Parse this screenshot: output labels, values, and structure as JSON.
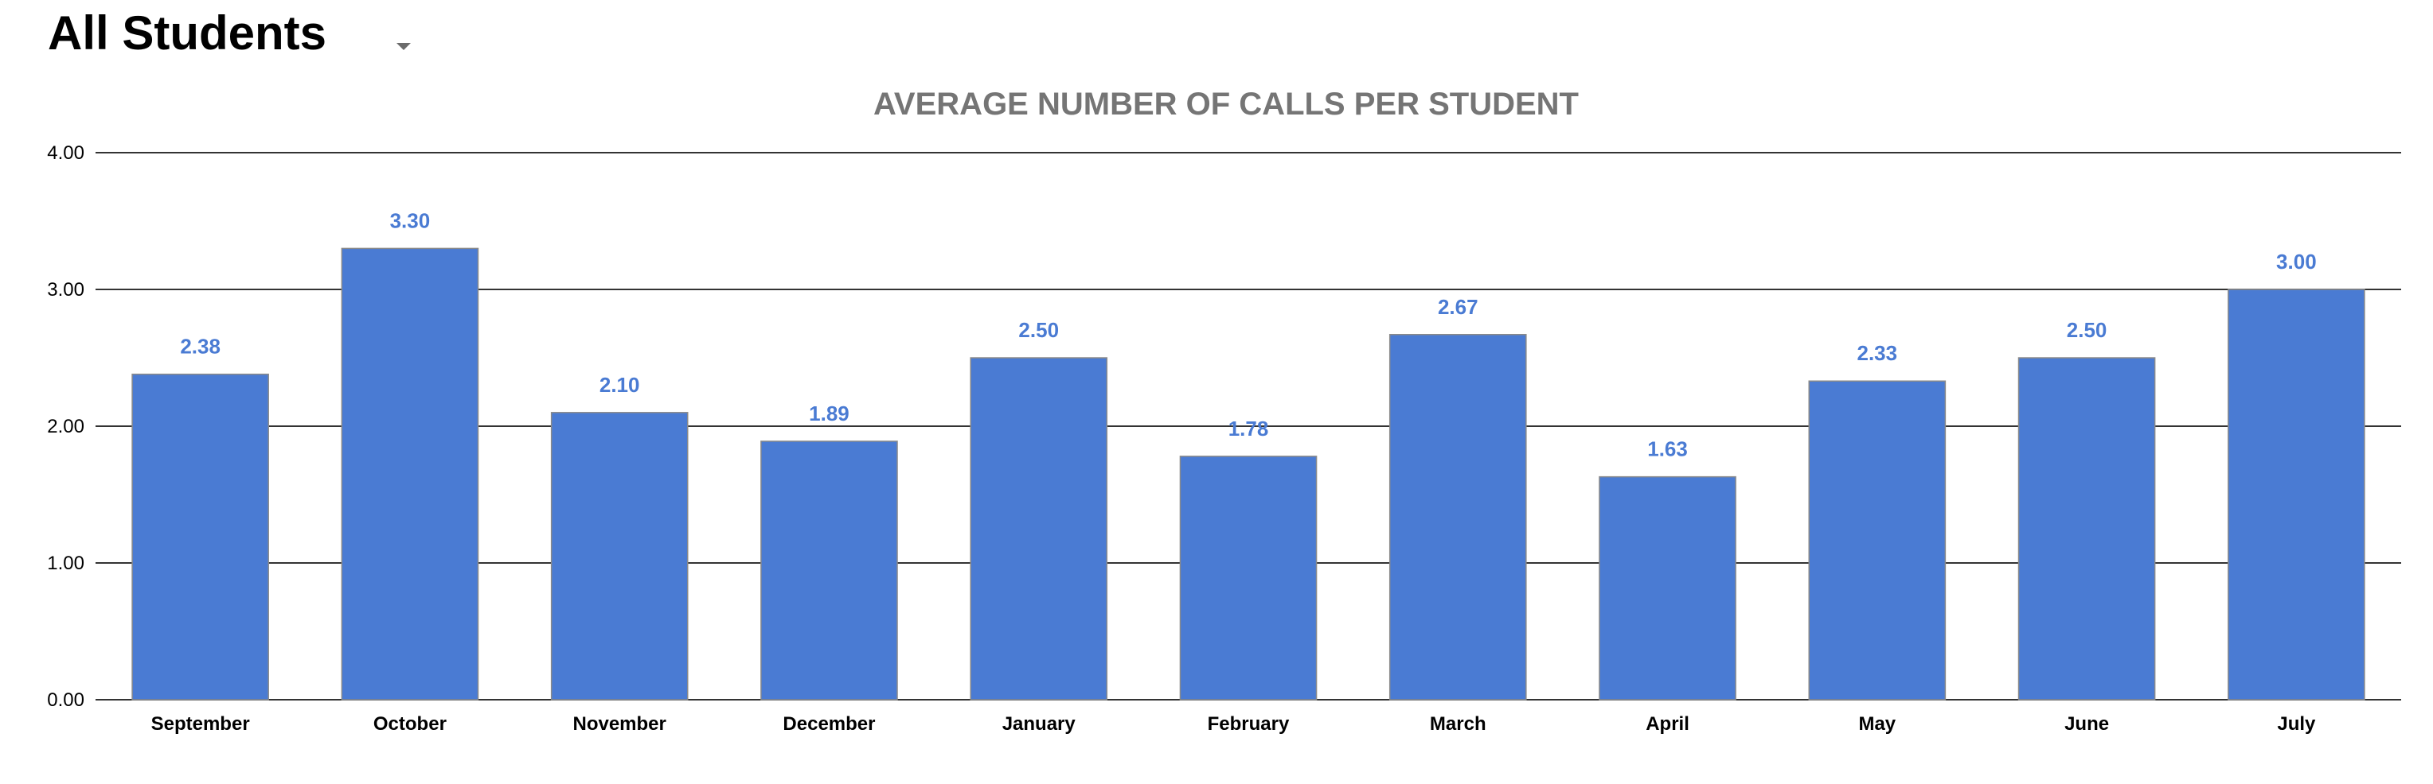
{
  "filter": {
    "label": "All Students"
  },
  "chart_data": {
    "type": "bar",
    "title": "AVERAGE NUMBER OF CALLS PER STUDENT",
    "xlabel": "",
    "ylabel": "",
    "categories": [
      "September",
      "October",
      "November",
      "December",
      "January",
      "February",
      "March",
      "April",
      "May",
      "June",
      "July"
    ],
    "values": [
      2.38,
      3.3,
      2.1,
      1.89,
      2.5,
      1.78,
      2.67,
      1.63,
      2.33,
      2.5,
      3.0
    ],
    "data_labels": [
      "2.38",
      "3.30",
      "2.10",
      "1.89",
      "2.50",
      "1.78",
      "2.67",
      "1.63",
      "2.33",
      "2.50",
      "3.00"
    ],
    "ylim": [
      0,
      4
    ],
    "y_ticks": [
      "0.00",
      "1.00",
      "2.00",
      "3.00",
      "4.00"
    ],
    "grid": true,
    "legend": "none",
    "bar_color": "#4a7bd3"
  }
}
